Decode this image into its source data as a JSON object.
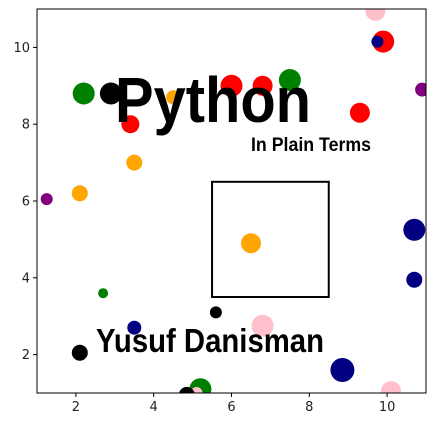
{
  "chart_data": {
    "type": "scatter",
    "title": "Python",
    "subtitle": "In Plain Terms",
    "author": "Yusuf Danisman",
    "xlim": [
      1,
      11
    ],
    "ylim": [
      1,
      11
    ],
    "x_ticks": [
      2,
      4,
      6,
      8,
      10
    ],
    "x_tick_labels": [
      "2",
      "4",
      "6",
      "8",
      "10"
    ],
    "y_ticks": [
      2,
      4,
      6,
      8,
      10
    ],
    "y_tick_labels": [
      "2",
      "4",
      "6",
      "8",
      "10"
    ],
    "grid": false,
    "highlight_box": {
      "x0": 5.5,
      "x1": 8.5,
      "y0": 3.5,
      "y1": 6.5
    },
    "points": [
      {
        "x": 9.7,
        "y": 10.95,
        "color": "#ffc0cb",
        "size": 10
      },
      {
        "x": 9.9,
        "y": 10.15,
        "color": "#ff0000",
        "size": 11
      },
      {
        "x": 9.75,
        "y": 10.15,
        "color": "#000080",
        "size": 6
      },
      {
        "x": 10.9,
        "y": 8.9,
        "color": "#800080",
        "size": 7
      },
      {
        "x": 9.3,
        "y": 8.3,
        "color": "#ff0000",
        "size": 10
      },
      {
        "x": 7.5,
        "y": 9.15,
        "color": "#008000",
        "size": 11
      },
      {
        "x": 6.8,
        "y": 9.0,
        "color": "#ff0000",
        "size": 10
      },
      {
        "x": 6.0,
        "y": 9.0,
        "color": "#ff0000",
        "size": 11
      },
      {
        "x": 2.2,
        "y": 8.8,
        "color": "#008000",
        "size": 11
      },
      {
        "x": 2.9,
        "y": 8.8,
        "color": "#000000",
        "size": 11
      },
      {
        "x": 4.5,
        "y": 8.7,
        "color": "#ffa500",
        "size": 7
      },
      {
        "x": 3.4,
        "y": 8.0,
        "color": "#ff0000",
        "size": 9
      },
      {
        "x": 3.5,
        "y": 7.0,
        "color": "#ffa500",
        "size": 8
      },
      {
        "x": 2.1,
        "y": 6.2,
        "color": "#ffa500",
        "size": 8
      },
      {
        "x": 1.25,
        "y": 6.05,
        "color": "#800080",
        "size": 6
      },
      {
        "x": 6.5,
        "y": 4.9,
        "color": "#ffa500",
        "size": 10
      },
      {
        "x": 10.7,
        "y": 5.25,
        "color": "#000080",
        "size": 11
      },
      {
        "x": 10.7,
        "y": 3.95,
        "color": "#000080",
        "size": 8
      },
      {
        "x": 2.7,
        "y": 3.6,
        "color": "#008000",
        "size": 5
      },
      {
        "x": 5.6,
        "y": 3.1,
        "color": "#000000",
        "size": 6
      },
      {
        "x": 6.8,
        "y": 2.75,
        "color": "#ffc0cb",
        "size": 11
      },
      {
        "x": 3.5,
        "y": 2.7,
        "color": "#000080",
        "size": 7
      },
      {
        "x": 2.1,
        "y": 2.05,
        "color": "#000000",
        "size": 8
      },
      {
        "x": 8.85,
        "y": 1.6,
        "color": "#000080",
        "size": 12
      },
      {
        "x": 10.1,
        "y": 1.05,
        "color": "#ffc0cb",
        "size": 10
      },
      {
        "x": 5.2,
        "y": 1.1,
        "color": "#008000",
        "size": 11
      },
      {
        "x": 5.1,
        "y": 1.0,
        "color": "#ffc0cb",
        "size": 6
      },
      {
        "x": 4.85,
        "y": 0.95,
        "color": "#000000",
        "size": 8
      }
    ]
  }
}
